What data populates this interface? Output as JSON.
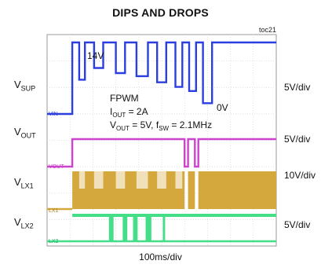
{
  "title": "DIPS AND DROPS",
  "figure_id": "toc21",
  "time_scale": "100ms/div",
  "chart_data": {
    "type": "line",
    "x_unit": "ms",
    "x_range": [
      0,
      1000
    ],
    "grid": true,
    "channels": [
      {
        "id": "vsup",
        "label_main": "V",
        "label_sub": "SUP",
        "scale": "5V/div",
        "tag": "VIN",
        "color": "#2b3fe0",
        "high_level_text": "14V",
        "low_level_text": "0V",
        "x": [
          0,
          110,
          110,
          140,
          140,
          165,
          165,
          205,
          205,
          245,
          245,
          300,
          300,
          340,
          340,
          390,
          390,
          440,
          440,
          480,
          480,
          520,
          520,
          560,
          560,
          590,
          590,
          620,
          620,
          650,
          650,
          680,
          680,
          720,
          720,
          1000
        ],
        "y": [
          0,
          0,
          14,
          14,
          6.7,
          6.7,
          14,
          14,
          9,
          9,
          14,
          14,
          8,
          8,
          14,
          14,
          7.4,
          7.4,
          14,
          14,
          6.2,
          6.2,
          14,
          14,
          5.3,
          5.3,
          14,
          14,
          4.5,
          4.5,
          14,
          14,
          2.1,
          2.1,
          14,
          14
        ]
      },
      {
        "id": "vout",
        "label_main": "V",
        "label_sub": "OUT",
        "scale": "5V/div",
        "tag": "VOUT",
        "color": "#cc44cc",
        "x": [
          0,
          110,
          110,
          600,
          600,
          615,
          615,
          645,
          645,
          660,
          660,
          1000
        ],
        "y": [
          0,
          0,
          5,
          5,
          0,
          0,
          5,
          5,
          0,
          0,
          5,
          5
        ]
      },
      {
        "id": "vlx1",
        "label_main": "V",
        "label_sub": "LX1",
        "scale": "10V/div",
        "tag": "LX1",
        "color": "#d4a83c"
      },
      {
        "id": "vlx2",
        "label_main": "V",
        "label_sub": "LX2",
        "scale": "5V/div",
        "tag": "LX2",
        "color": "#44dd88"
      }
    ],
    "annotation": {
      "mode": "FPWM",
      "iout_main": "I",
      "iout_sub": "OUT",
      "iout_val": " = 2A",
      "vout_main": "V",
      "vout_sub": "OUT",
      "vout_val": " = 5V, f",
      "fsw_sub": "SW",
      "fsw_val": " = 2.1MHz"
    }
  }
}
